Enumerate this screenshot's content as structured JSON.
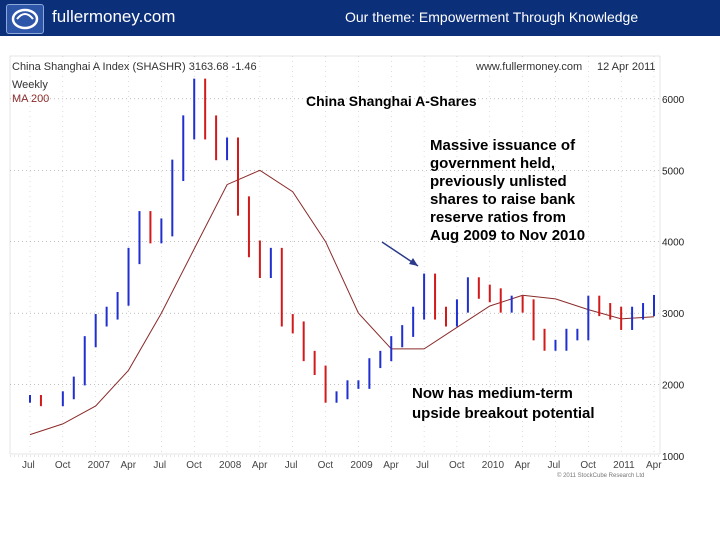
{
  "header": {
    "brand": "fullermoney.com",
    "theme": "Our theme: Empowerment Through Knowledge",
    "bg_color": "#0c2f7a"
  },
  "chart_header": {
    "left": "China Shanghai A Index (SHASHR) 3163.68 -1.46",
    "right": "www.fullermoney.com",
    "date": "12 Apr 2011",
    "legend_weekly": "Weekly",
    "legend_ma": "MA 200"
  },
  "copyright": "© 2011 StockCube Research Ltd",
  "chart_data": {
    "type": "line",
    "title": "China Shanghai A-Shares",
    "ylim": [
      1000,
      6600
    ],
    "yticks": [
      1000,
      2000,
      3000,
      4000,
      5000,
      6000
    ],
    "xticks": [
      "Jul",
      "Oct",
      "2007",
      "Apr",
      "Jul",
      "Oct",
      "2008",
      "Apr",
      "Jul",
      "Oct",
      "2009",
      "Apr",
      "Jul",
      "Oct",
      "2010",
      "Apr",
      "Jul",
      "Oct",
      "2011",
      "Apr"
    ],
    "grid": true,
    "colors": {
      "up": "#1f2fd0",
      "down": "#d21a1a",
      "ma": "#8b2a2a"
    },
    "series": [
      {
        "name": "Weekly",
        "x": [
          "2006-07",
          "2006-08",
          "2006-10",
          "2006-11",
          "2006-12",
          "2007-01",
          "2007-02",
          "2007-03",
          "2007-04",
          "2007-05",
          "2007-06",
          "2007-07",
          "2007-08",
          "2007-09",
          "2007-10",
          "2007-11",
          "2007-12",
          "2008-01",
          "2008-02",
          "2008-03",
          "2008-04",
          "2008-05",
          "2008-06",
          "2008-07",
          "2008-08",
          "2008-09",
          "2008-10",
          "2008-11",
          "2008-12",
          "2009-01",
          "2009-02",
          "2009-03",
          "2009-04",
          "2009-05",
          "2009-06",
          "2009-07",
          "2009-08",
          "2009-09",
          "2009-10",
          "2009-11",
          "2009-12",
          "2010-01",
          "2010-02",
          "2010-03",
          "2010-04",
          "2010-05",
          "2010-06",
          "2010-07",
          "2010-08",
          "2010-09",
          "2010-10",
          "2010-11",
          "2010-12",
          "2011-01",
          "2011-02",
          "2011-03",
          "2011-04"
        ],
        "values": [
          1800,
          1750,
          1850,
          2050,
          2600,
          2900,
          3000,
          3200,
          3800,
          4300,
          4100,
          4200,
          5000,
          5600,
          6100,
          5600,
          5300,
          5300,
          4500,
          3900,
          3600,
          3800,
          2900,
          2800,
          2400,
          2200,
          1800,
          1850,
          2000,
          2000,
          2300,
          2400,
          2600,
          2750,
          3000,
          3450,
          3000,
          2900,
          3100,
          3400,
          3300,
          3250,
          3100,
          3150,
          3100,
          2700,
          2550,
          2550,
          2700,
          2700,
          3150,
          3050,
          3000,
          2850,
          3000,
          3050,
          3160
        ]
      },
      {
        "name": "MA 200",
        "x": [
          "2006-07",
          "2006-10",
          "2007-01",
          "2007-04",
          "2007-07",
          "2007-10",
          "2008-01",
          "2008-04",
          "2008-07",
          "2008-10",
          "2009-01",
          "2009-04",
          "2009-07",
          "2009-10",
          "2010-01",
          "2010-04",
          "2010-07",
          "2010-10",
          "2011-01",
          "2011-04"
        ],
        "values": [
          1300,
          1450,
          1700,
          2200,
          3000,
          3900,
          4800,
          5000,
          4700,
          4000,
          3000,
          2500,
          2500,
          2800,
          3100,
          3250,
          3200,
          3050,
          2920,
          2950
        ]
      }
    ],
    "annotations": [
      "Massive issuance of",
      "government held,",
      "previously unlisted",
      "shares to raise bank",
      "reserve ratios from",
      "Aug 2009 to Nov 2010"
    ],
    "annotations2": [
      "Now has medium-term",
      "upside breakout potential"
    ]
  }
}
